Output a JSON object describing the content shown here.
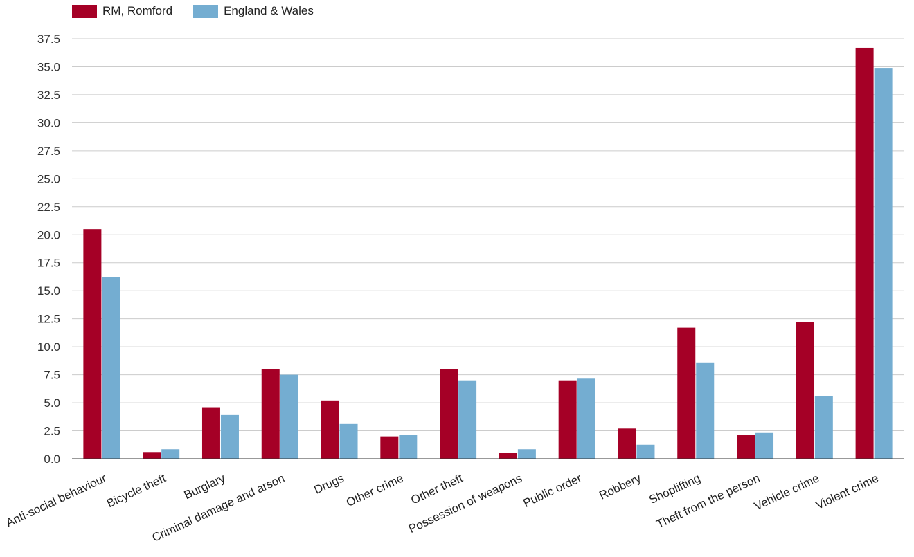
{
  "chart_data": {
    "type": "bar",
    "categories": [
      "Anti-social behaviour",
      "Bicycle theft",
      "Burglary",
      "Criminal damage and arson",
      "Drugs",
      "Other crime",
      "Other theft",
      "Possession of weapons",
      "Public order",
      "Robbery",
      "Shoplifting",
      "Theft from the person",
      "Vehicle crime",
      "Violent crime"
    ],
    "series": [
      {
        "name": "RM, Romford",
        "color": "#a50026",
        "values": [
          20.5,
          0.6,
          4.6,
          8.0,
          5.2,
          2.0,
          8.0,
          0.55,
          7.0,
          2.7,
          11.7,
          2.1,
          12.2,
          36.7
        ]
      },
      {
        "name": "England & Wales",
        "color": "#74add1",
        "values": [
          16.2,
          0.85,
          3.9,
          7.5,
          3.1,
          2.15,
          7.0,
          0.85,
          7.15,
          1.25,
          8.6,
          2.3,
          5.6,
          34.9
        ]
      }
    ],
    "yticks": [
      "0.0",
      "2.5",
      "5.0",
      "7.5",
      "10.0",
      "12.5",
      "15.0",
      "17.5",
      "20.0",
      "22.5",
      "25.0",
      "27.5",
      "30.0",
      "32.5",
      "35.0",
      "37.5"
    ],
    "ylim": [
      0,
      37.5
    ],
    "grid": true,
    "legend_position": "top-left"
  }
}
